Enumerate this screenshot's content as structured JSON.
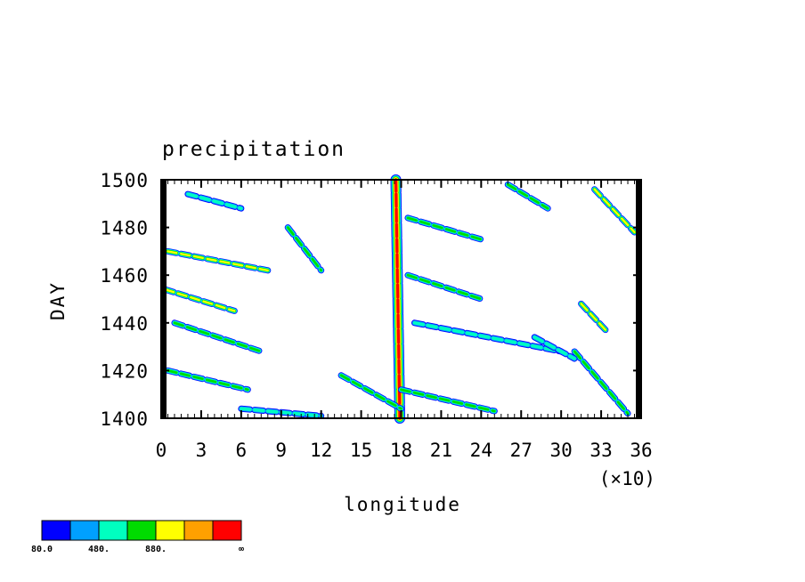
{
  "chart_data": {
    "type": "heatmap",
    "title": "precipitation",
    "xlabel": "longitude",
    "ylabel": "DAY",
    "x_multiplier": "(×10)",
    "xlim": [
      0,
      36
    ],
    "ylim": [
      1400,
      1500
    ],
    "x_ticks": [
      "0",
      "3",
      "6",
      "9",
      "12",
      "15",
      "18",
      "21",
      "24",
      "27",
      "30",
      "33",
      "36"
    ],
    "y_ticks": [
      "1400",
      "1420",
      "1440",
      "1460",
      "1480",
      "1500"
    ],
    "colorbar": {
      "colors": [
        "#0000ff",
        "#00a0ff",
        "#00ffc0",
        "#00dc00",
        "#ffff00",
        "#ffa000",
        "#ff0000"
      ],
      "labels": [
        "80.0",
        "480.",
        "880.",
        "∞"
      ]
    },
    "features": [
      {
        "kind": "band",
        "x0": 17.9,
        "y0": 1400,
        "x1": 17.6,
        "y1": 1500,
        "intensity": 6
      },
      {
        "kind": "streak",
        "x0": 0.3,
        "y0": 1454,
        "x1": 5.5,
        "y1": 1445,
        "intensity": 4
      },
      {
        "kind": "streak",
        "x0": 0.5,
        "y0": 1470,
        "x1": 8.0,
        "y1": 1462,
        "intensity": 4
      },
      {
        "kind": "streak",
        "x0": 1.0,
        "y0": 1440,
        "x1": 7.5,
        "y1": 1428,
        "intensity": 3
      },
      {
        "kind": "streak",
        "x0": 0.5,
        "y0": 1420,
        "x1": 6.5,
        "y1": 1412,
        "intensity": 3
      },
      {
        "kind": "streak",
        "x0": 2.0,
        "y0": 1494,
        "x1": 6.0,
        "y1": 1488,
        "intensity": 2
      },
      {
        "kind": "streak",
        "x0": 9.5,
        "y0": 1480,
        "x1": 12.0,
        "y1": 1462,
        "intensity": 3
      },
      {
        "kind": "streak",
        "x0": 18.5,
        "y0": 1484,
        "x1": 24.0,
        "y1": 1475,
        "intensity": 3
      },
      {
        "kind": "streak",
        "x0": 18.5,
        "y0": 1460,
        "x1": 24.0,
        "y1": 1450,
        "intensity": 3
      },
      {
        "kind": "streak",
        "x0": 19.0,
        "y0": 1440,
        "x1": 30.0,
        "y1": 1428,
        "intensity": 2
      },
      {
        "kind": "streak",
        "x0": 13.5,
        "y0": 1418,
        "x1": 18.0,
        "y1": 1404,
        "intensity": 3
      },
      {
        "kind": "streak",
        "x0": 18.0,
        "y0": 1412,
        "x1": 25.0,
        "y1": 1403,
        "intensity": 3
      },
      {
        "kind": "streak",
        "x0": 26.0,
        "y0": 1498,
        "x1": 29.0,
        "y1": 1488,
        "intensity": 3
      },
      {
        "kind": "streak",
        "x0": 31.5,
        "y0": 1448,
        "x1": 33.5,
        "y1": 1436,
        "intensity": 4
      },
      {
        "kind": "streak",
        "x0": 32.5,
        "y0": 1496,
        "x1": 35.5,
        "y1": 1478,
        "intensity": 4
      },
      {
        "kind": "streak",
        "x0": 31.0,
        "y0": 1428,
        "x1": 35.0,
        "y1": 1402,
        "intensity": 3
      },
      {
        "kind": "streak",
        "x0": 28.0,
        "y0": 1434,
        "x1": 31.0,
        "y1": 1425,
        "intensity": 2
      },
      {
        "kind": "streak",
        "x0": 6.0,
        "y0": 1404,
        "x1": 12.0,
        "y1": 1401,
        "intensity": 2
      },
      {
        "kind": "edge",
        "x0": 0.0,
        "y0": 1400,
        "x1": 0.4,
        "y1": 1500,
        "intensity": 6
      },
      {
        "kind": "edge",
        "x0": 35.6,
        "y0": 1400,
        "x1": 36.0,
        "y1": 1500,
        "intensity": 6
      }
    ]
  }
}
